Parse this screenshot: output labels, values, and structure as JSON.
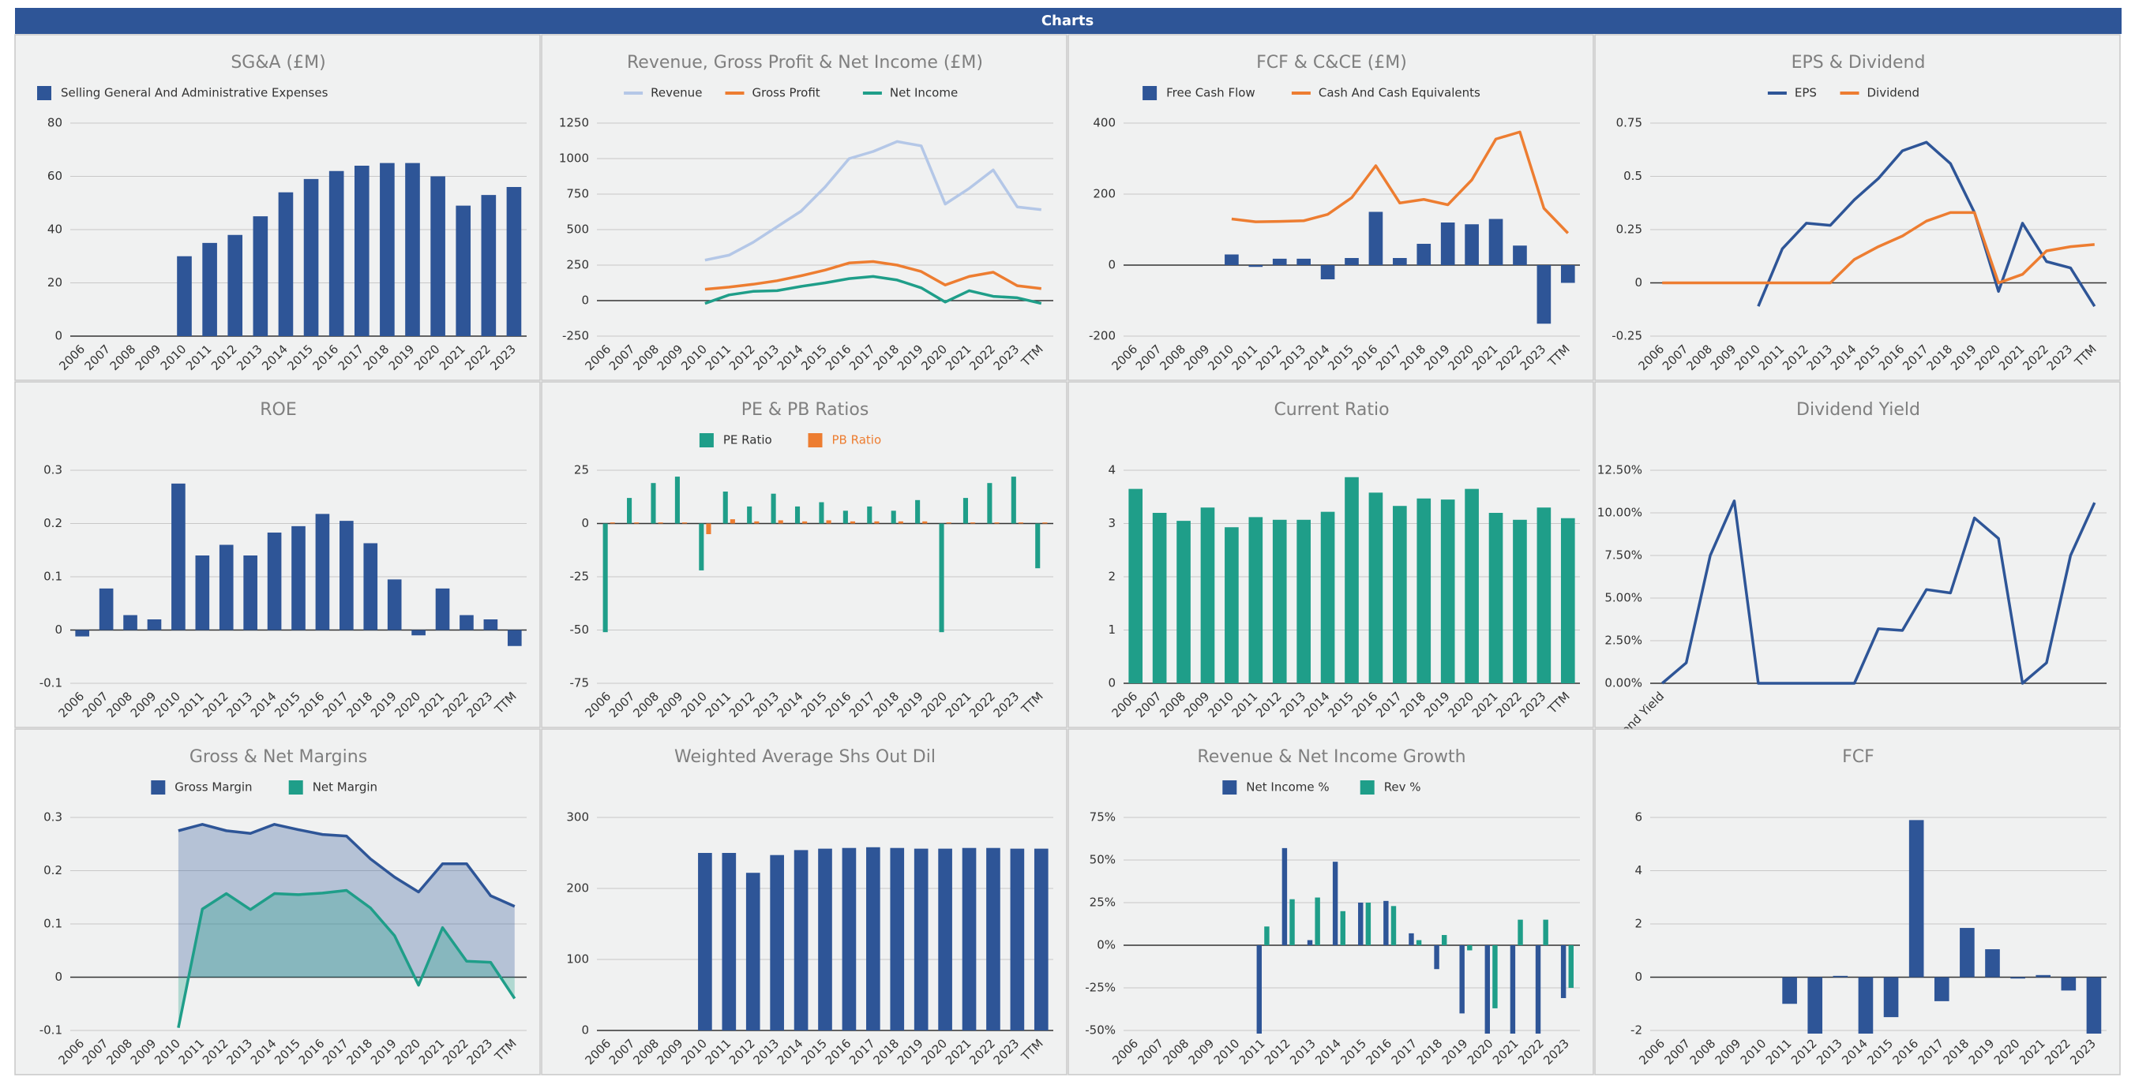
{
  "header": "Charts",
  "chart_data": [
    {
      "type": "bar",
      "title": "SG&A (£M)",
      "legend": "top-left",
      "categories": [
        "2006",
        "2007",
        "2008",
        "2009",
        "2010",
        "2011",
        "2012",
        "2013",
        "2014",
        "2015",
        "2016",
        "2017",
        "2018",
        "2019",
        "2020",
        "2021",
        "2022",
        "2023"
      ],
      "series": [
        {
          "name": "Selling General And Administrative Expenses",
          "color": "#2e5597",
          "values": [
            null,
            null,
            null,
            null,
            30,
            35,
            38,
            45,
            54,
            59,
            62,
            64,
            65,
            65,
            60,
            49,
            53,
            56
          ]
        }
      ],
      "ylim": [
        0,
        80
      ],
      "yticks": [
        0,
        20,
        40,
        60,
        80
      ],
      "grid": true
    },
    {
      "type": "line",
      "title": "Revenue, Gross Profit & Net Income (£M)",
      "legend": "top",
      "categories": [
        "2006",
        "2007",
        "2008",
        "2009",
        "2010",
        "2011",
        "2012",
        "2013",
        "2014",
        "2015",
        "2016",
        "2017",
        "2018",
        "2019",
        "2020",
        "2021",
        "2022",
        "2023",
        "TTM"
      ],
      "series": [
        {
          "name": "Revenue",
          "color": "#b4c7e7",
          "values": [
            null,
            null,
            null,
            null,
            285,
            320,
            410,
            520,
            630,
            800,
            1000,
            1050,
            1120,
            1090,
            680,
            790,
            920,
            660,
            640
          ]
        },
        {
          "name": "Gross Profit",
          "color": "#ed7d31",
          "values": [
            null,
            null,
            null,
            null,
            80,
            95,
            115,
            140,
            175,
            215,
            265,
            275,
            250,
            205,
            110,
            170,
            200,
            105,
            85
          ]
        },
        {
          "name": "Net Income",
          "color": "#1f9e89",
          "values": [
            null,
            null,
            null,
            null,
            -20,
            40,
            65,
            70,
            100,
            125,
            155,
            170,
            145,
            90,
            -10,
            70,
            30,
            20,
            -20
          ]
        }
      ],
      "ylim": [
        -250,
        1250
      ],
      "yticks": [
        -250,
        0,
        250,
        500,
        750,
        1000,
        1250
      ],
      "grid": true
    },
    {
      "type": "bar",
      "title": "FCF & C&CE (£M)",
      "legend": "top",
      "categories": [
        "2006",
        "2007",
        "2008",
        "2009",
        "2010",
        "2011",
        "2012",
        "2013",
        "2014",
        "2015",
        "2016",
        "2017",
        "2018",
        "2019",
        "2020",
        "2021",
        "2022",
        "2023",
        "TTM"
      ],
      "series": [
        {
          "name": "Free Cash Flow",
          "color": "#2e5597",
          "values": [
            null,
            null,
            null,
            null,
            30,
            -5,
            18,
            18,
            -40,
            20,
            150,
            20,
            60,
            120,
            115,
            130,
            55,
            -165,
            -50
          ]
        },
        {
          "name": "Cash And Cash Equivalents",
          "color": "#ed7d31",
          "type": "line",
          "values": [
            null,
            null,
            null,
            null,
            130,
            122,
            123,
            125,
            143,
            190,
            280,
            175,
            185,
            170,
            240,
            355,
            375,
            160,
            90
          ]
        }
      ],
      "ylim": [
        -200,
        400
      ],
      "yticks": [
        -200,
        0,
        200,
        400
      ],
      "grid": true
    },
    {
      "type": "line",
      "title": "EPS & Dividend",
      "legend": "top",
      "categories": [
        "2006",
        "2007",
        "2008",
        "2009",
        "2010",
        "2011",
        "2012",
        "2013",
        "2014",
        "2015",
        "2016",
        "2017",
        "2018",
        "2019",
        "2020",
        "2021",
        "2022",
        "2023",
        "TTM"
      ],
      "series": [
        {
          "name": "EPS",
          "color": "#2e5597",
          "values": [
            null,
            null,
            null,
            null,
            -0.11,
            0.16,
            0.28,
            0.27,
            0.39,
            0.49,
            0.62,
            0.66,
            0.56,
            0.33,
            -0.04,
            0.28,
            0.1,
            0.07,
            -0.11
          ]
        },
        {
          "name": "Dividend",
          "color": "#ed7d31",
          "values": [
            0,
            0,
            0,
            0,
            0,
            0,
            0,
            0,
            0.11,
            0.17,
            0.22,
            0.29,
            0.33,
            0.33,
            0,
            0.04,
            0.15,
            0.17,
            0.18
          ]
        }
      ],
      "ylim": [
        -0.25,
        0.75
      ],
      "yticks": [
        -0.25,
        0,
        0.25,
        0.5,
        0.75
      ],
      "grid": true
    },
    {
      "type": "bar",
      "title": "ROE",
      "color": "#2e5597",
      "categories": [
        "2006",
        "2007",
        "2008",
        "2009",
        "2010",
        "2011",
        "2012",
        "2013",
        "2014",
        "2015",
        "2016",
        "2017",
        "2018",
        "2019",
        "2020",
        "2021",
        "2022",
        "2023",
        "TTM"
      ],
      "values": [
        -0.012,
        0.078,
        0.028,
        0.02,
        0.275,
        0.14,
        0.16,
        0.14,
        0.183,
        0.195,
        0.218,
        0.205,
        0.163,
        0.095,
        -0.01,
        0.078,
        0.028,
        0.02,
        -0.03
      ],
      "ylim": [
        -0.1,
        0.3
      ],
      "yticks": [
        -0.1,
        0,
        0.1,
        0.2,
        0.3
      ],
      "grid": true
    },
    {
      "type": "bar",
      "title": "PE & PB Ratios",
      "legend": "top",
      "categories": [
        "2006",
        "2007",
        "2008",
        "2009",
        "2010",
        "2011",
        "2012",
        "2013",
        "2014",
        "2015",
        "2016",
        "2017",
        "2018",
        "2019",
        "2020",
        "2021",
        "2022",
        "2023",
        "TTM"
      ],
      "series": [
        {
          "name": "PE Ratio",
          "color": "#1f9e89",
          "values": [
            -51,
            12,
            19,
            22,
            -22,
            15,
            8,
            14,
            8,
            10,
            6,
            8,
            6,
            11,
            -51,
            12,
            19,
            22,
            -21
          ]
        },
        {
          "name": "PB Ratio",
          "color": "#ed7d31",
          "legend_text_colored": true,
          "values": [
            0.5,
            0.5,
            0.5,
            0.5,
            -5,
            2,
            1,
            1.5,
            1,
            1.5,
            1,
            1,
            1,
            1,
            0.5,
            0.5,
            0.5,
            0.5,
            0.5
          ]
        }
      ],
      "ylim": [
        -75,
        25
      ],
      "yticks": [
        -75,
        -50,
        -25,
        0,
        25
      ],
      "grid": true
    },
    {
      "type": "bar",
      "title": "Current Ratio",
      "color": "#1f9e89",
      "categories": [
        "2006",
        "2007",
        "2008",
        "2009",
        "2010",
        "2011",
        "2012",
        "2013",
        "2014",
        "2015",
        "2016",
        "2017",
        "2018",
        "2019",
        "2020",
        "2021",
        "2022",
        "2023",
        "TTM"
      ],
      "values": [
        3.65,
        3.2,
        3.05,
        3.3,
        2.93,
        3.12,
        3.07,
        3.07,
        3.22,
        3.87,
        3.58,
        3.33,
        3.47,
        3.45,
        3.65,
        3.2,
        3.07,
        3.3,
        3.1
      ],
      "ylim": [
        0,
        4
      ],
      "yticks": [
        0,
        1,
        2,
        3,
        4
      ],
      "grid": true
    },
    {
      "type": "line",
      "title": "Dividend Yield",
      "color": "#2e5597",
      "categories": [
        "Dividend Yield",
        null,
        null,
        null,
        null,
        null,
        null,
        null,
        null,
        null,
        null,
        null,
        null,
        null,
        null,
        null,
        null,
        null,
        null
      ],
      "values": [
        0,
        1.2,
        7.5,
        10.7,
        0,
        0,
        0,
        0,
        0,
        3.2,
        3.1,
        5.5,
        5.3,
        9.7,
        8.5,
        0,
        1.2,
        7.5,
        10.6
      ],
      "ylim": [
        0,
        12.5
      ],
      "yticks": [
        {
          "value": 0,
          "label": "0.00%"
        },
        {
          "value": 2.5,
          "label": "2.50%"
        },
        {
          "value": 5,
          "label": "5.00%"
        },
        {
          "value": 7.5,
          "label": "7.50%"
        },
        {
          "value": 10,
          "label": "10.00%"
        },
        {
          "value": 12.5,
          "label": "12.50%"
        }
      ],
      "grid": true
    },
    {
      "type": "area",
      "title": "Gross & Net Margins",
      "legend": "top",
      "categories": [
        "2006",
        "2007",
        "2008",
        "2009",
        "2010",
        "2011",
        "2012",
        "2013",
        "2014",
        "2015",
        "2016",
        "2017",
        "2018",
        "2019",
        "2020",
        "2021",
        "2022",
        "2023",
        "TTM"
      ],
      "series": [
        {
          "name": "Gross Margin",
          "color": "#2e5597",
          "values": [
            null,
            null,
            null,
            null,
            0.275,
            0.287,
            0.275,
            0.27,
            0.287,
            0.277,
            0.268,
            0.265,
            0.222,
            0.188,
            0.16,
            0.213,
            0.213,
            0.153,
            0.133
          ]
        },
        {
          "name": "Net Margin",
          "color": "#1f9e89",
          "values": [
            null,
            null,
            null,
            null,
            -0.095,
            0.128,
            0.157,
            0.127,
            0.157,
            0.155,
            0.158,
            0.163,
            0.13,
            0.078,
            -0.015,
            0.093,
            0.03,
            0.028,
            -0.04
          ]
        }
      ],
      "ylim": [
        -0.1,
        0.3
      ],
      "yticks": [
        -0.1,
        0,
        0.1,
        0.2,
        0.3
      ],
      "grid": true
    },
    {
      "type": "bar",
      "title": "Weighted Average Shs Out Dil",
      "color": "#2e5597",
      "categories": [
        "2006",
        "2007",
        "2008",
        "2009",
        "2010",
        "2011",
        "2012",
        "2013",
        "2014",
        "2015",
        "2016",
        "2017",
        "2018",
        "2019",
        "2020",
        "2021",
        "2022",
        "2023",
        "TTM"
      ],
      "values": [
        null,
        null,
        null,
        null,
        250,
        250,
        222,
        247,
        254,
        256,
        257,
        258,
        257,
        256,
        256,
        257,
        257,
        256,
        256
      ],
      "ylim": [
        0,
        300
      ],
      "yticks": [
        0,
        100,
        200,
        300
      ],
      "grid": true
    },
    {
      "type": "bar",
      "title": "Revenue & Net Income Growth",
      "legend": "top",
      "categories": [
        "2006",
        "2007",
        "2008",
        "2009",
        "2010",
        "2011",
        "2012",
        "2013",
        "2014",
        "2015",
        "2016",
        "2017",
        "2018",
        "2019",
        "2020",
        "2021",
        "2022",
        "2023"
      ],
      "series": [
        {
          "name": "Net Income %",
          "color": "#2e5597",
          "values": [
            null,
            null,
            null,
            null,
            null,
            -62,
            57,
            3,
            49,
            25,
            26,
            7,
            -14,
            -40,
            -60,
            -58,
            -56,
            -31
          ]
        },
        {
          "name": "Rev %",
          "color": "#1f9e89",
          "values": [
            null,
            null,
            null,
            null,
            null,
            11,
            27,
            28,
            20,
            25,
            23,
            3,
            6,
            -3,
            -37,
            15,
            15,
            -25
          ]
        }
      ],
      "ylim": [
        -50,
        75
      ],
      "yticks": [
        {
          "value": -50,
          "label": "-50%"
        },
        {
          "value": -25,
          "label": "-25%"
        },
        {
          "value": 0,
          "label": "0%"
        },
        {
          "value": 25,
          "label": "25%"
        },
        {
          "value": 50,
          "label": "50%"
        },
        {
          "value": 75,
          "label": "75%"
        }
      ],
      "grid": true
    },
    {
      "type": "bar",
      "title": "FCF",
      "color": "#2e5597",
      "categories": [
        "2006",
        "2007",
        "2008",
        "2009",
        "2010",
        "2011",
        "2012",
        "2013",
        "2014",
        "2015",
        "2016",
        "2017",
        "2018",
        "2019",
        "2020",
        "2021",
        "2022",
        "2023"
      ],
      "values": [
        null,
        null,
        null,
        null,
        null,
        -1,
        -2.5,
        0.05,
        -2.3,
        -1.5,
        5.9,
        -0.9,
        1.85,
        1.05,
        -0.05,
        0.08,
        -0.5,
        -2.4
      ],
      "ylim": [
        -2,
        6
      ],
      "yticks": [
        -2,
        0,
        2,
        4,
        6
      ],
      "grid": true
    }
  ]
}
